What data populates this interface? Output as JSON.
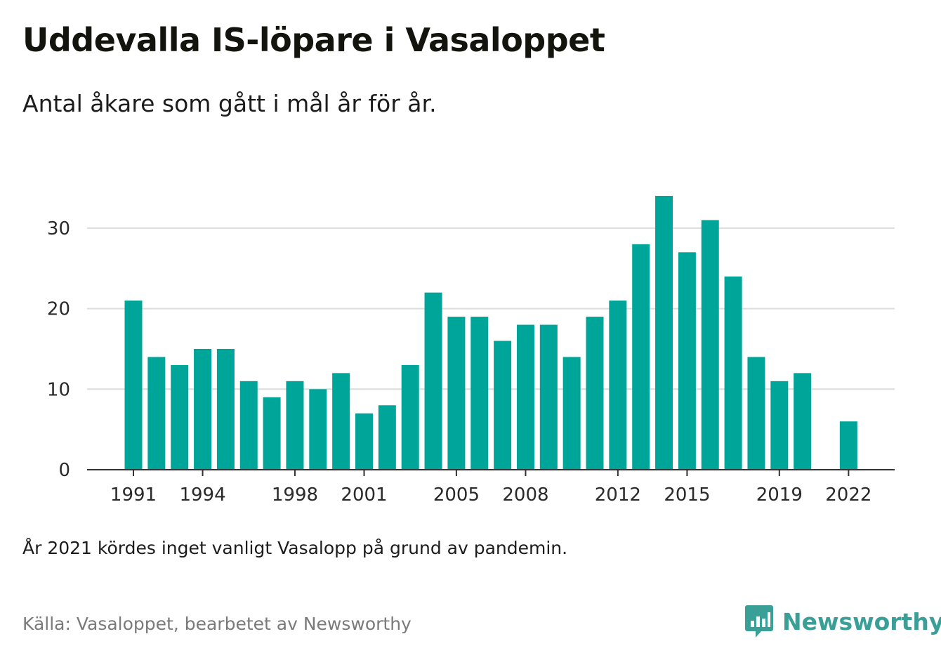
{
  "header": {
    "title": "Uddevalla IS-löpare i Vasaloppet",
    "subtitle": "Antal åkare som gått i mål år för år."
  },
  "footer": {
    "note": "År 2021 kördes inget vanligt Vasalopp på grund av pandemin.",
    "source": "Källa: Vasaloppet, bearbetet av Newsworthy",
    "logo_text": "Newsworthy"
  },
  "colors": {
    "bar": "#00a59a",
    "grid": "#dcdcdc",
    "axis": "#333333",
    "logo": "#3a9f96"
  },
  "chart_data": {
    "type": "bar",
    "x": [
      1991,
      1992,
      1993,
      1994,
      1995,
      1996,
      1997,
      1998,
      1999,
      2000,
      2001,
      2002,
      2003,
      2004,
      2005,
      2006,
      2007,
      2008,
      2009,
      2010,
      2011,
      2012,
      2013,
      2014,
      2015,
      2016,
      2017,
      2018,
      2019,
      2020,
      2021,
      2022
    ],
    "values": [
      21,
      14,
      13,
      15,
      15,
      11,
      9,
      11,
      10,
      12,
      7,
      8,
      13,
      22,
      19,
      19,
      16,
      18,
      18,
      14,
      19,
      21,
      28,
      34,
      27,
      31,
      24,
      14,
      11,
      12,
      null,
      6
    ],
    "x_tick_labels": [
      1991,
      1994,
      1998,
      2001,
      2005,
      2008,
      2012,
      2015,
      2019,
      2022
    ],
    "y_ticks": [
      0,
      10,
      20,
      30
    ],
    "ylim": [
      0,
      35
    ],
    "grid": true,
    "title": "Uddevalla IS-löpare i Vasaloppet",
    "subtitle": "Antal åkare som gått i mål år för år.",
    "xlabel": "",
    "ylabel": ""
  }
}
